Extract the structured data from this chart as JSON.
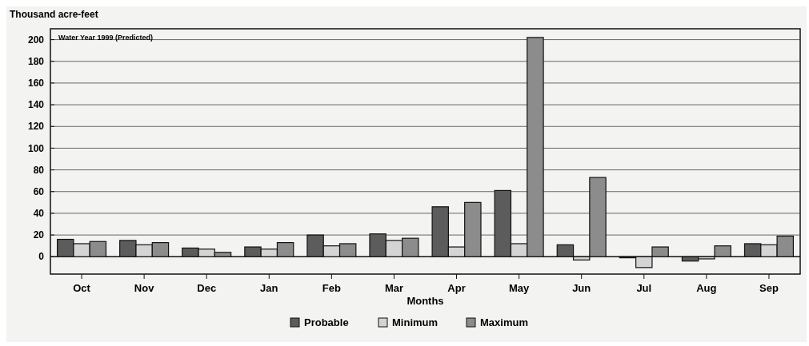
{
  "chart_data": {
    "type": "bar",
    "ylabel": "Thousand acre-feet",
    "xlabel": "Months",
    "annotations": [
      "Water Year 1999 (Predicted)"
    ],
    "categories": [
      "Oct",
      "Nov",
      "Dec",
      "Jan",
      "Feb",
      "Mar",
      "Apr",
      "May",
      "Jun",
      "Jul",
      "Aug",
      "Sep"
    ],
    "series": [
      {
        "name": "Probable",
        "color": "#5c5c5c",
        "values": [
          16,
          15,
          8,
          9,
          20,
          21,
          46,
          61,
          11,
          -1,
          -4,
          12
        ]
      },
      {
        "name": "Minimum",
        "color": "#d4d4d4",
        "values": [
          12,
          11,
          7,
          7,
          10,
          15,
          9,
          12,
          -3,
          -10,
          -2,
          11
        ]
      },
      {
        "name": "Maximum",
        "color": "#8c8c8c",
        "values": [
          14,
          13,
          4,
          13,
          12,
          17,
          50,
          202,
          73,
          9,
          10,
          19
        ]
      }
    ],
    "ylim": [
      -16,
      210
    ],
    "yticks": [
      0,
      20,
      40,
      60,
      80,
      100,
      120,
      140,
      160,
      180,
      200
    ],
    "grid": "y",
    "legend": "bottom"
  }
}
